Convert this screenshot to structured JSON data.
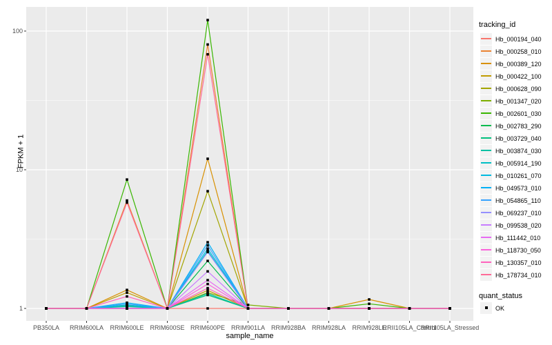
{
  "chart_data": {
    "type": "line",
    "title": "",
    "xlabel": "sample_name",
    "ylabel": "FPKM + 1",
    "y_scale": "log10",
    "y_ticks": [
      1,
      10,
      100
    ],
    "y_minor_ticks": [
      3.162,
      31.62
    ],
    "ylim_px_note": "log axis, decades at 1/10/100",
    "grid": true,
    "legend_position": "right",
    "panel_bg": "#ebebeb",
    "grid_color": "#ffffff",
    "tick_color": "#333333",
    "categories": [
      "PB350LA",
      "RRIM600LA",
      "RRIM600LE",
      "RRIM600SE",
      "RRIM600PE",
      "RRIM901LA",
      "RRIM928BA",
      "RRIM928LA",
      "RRIM928LE",
      "RRII105LA_Control",
      "RRII105LA_Stressed"
    ],
    "series": [
      {
        "name": "Hb_000194_040",
        "color": "#F8766D",
        "values": [
          1,
          1,
          1,
          1,
          1,
          1,
          1,
          1,
          1,
          1,
          1
        ]
      },
      {
        "name": "Hb_000258_010",
        "color": "#EA8331",
        "values": [
          1,
          1,
          6,
          1,
          80,
          1,
          1,
          1,
          1,
          1,
          1
        ]
      },
      {
        "name": "Hb_000389_120",
        "color": "#D89000",
        "values": [
          1,
          1,
          1.36,
          1,
          12,
          1,
          1,
          1,
          1.16,
          1,
          1
        ]
      },
      {
        "name": "Hb_000422_100",
        "color": "#C09B00",
        "values": [
          1,
          1,
          1.3,
          1,
          1.35,
          1,
          1,
          1,
          1,
          1,
          1
        ]
      },
      {
        "name": "Hb_000628_090",
        "color": "#A3A500",
        "values": [
          1,
          1,
          1.05,
          1,
          7,
          1,
          1,
          1,
          1,
          1,
          1
        ]
      },
      {
        "name": "Hb_001347_020",
        "color": "#7CAE00",
        "values": [
          1,
          1,
          1,
          1,
          1.3,
          1.06,
          1,
          1,
          1,
          1,
          1
        ]
      },
      {
        "name": "Hb_002601_030",
        "color": "#39B600",
        "values": [
          1,
          1,
          8.5,
          1,
          120,
          1,
          1,
          1,
          1.08,
          1,
          1
        ]
      },
      {
        "name": "Hb_002783_290",
        "color": "#00BB4E",
        "values": [
          1,
          1,
          1,
          1,
          2.2,
          1,
          1,
          1,
          1,
          1,
          1
        ]
      },
      {
        "name": "Hb_003729_040",
        "color": "#00BF7D",
        "values": [
          1,
          1,
          1,
          1,
          1.25,
          1,
          1,
          1,
          1,
          1,
          1
        ]
      },
      {
        "name": "Hb_003874_030",
        "color": "#00C1A3",
        "values": [
          1,
          1,
          1.03,
          1,
          1.28,
          1,
          1,
          1,
          1,
          1,
          1
        ]
      },
      {
        "name": "Hb_005914_190",
        "color": "#00BFC4",
        "values": [
          1,
          1,
          1.04,
          1,
          2.6,
          1,
          1,
          1,
          1,
          1,
          1
        ]
      },
      {
        "name": "Hb_010261_070",
        "color": "#00BAE0",
        "values": [
          1,
          1,
          1.06,
          1,
          2.7,
          1,
          1,
          1,
          1,
          1,
          1
        ]
      },
      {
        "name": "Hb_049573_010",
        "color": "#00B0F6",
        "values": [
          1,
          1,
          1.1,
          1,
          3.0,
          1,
          1,
          1,
          1,
          1,
          1
        ]
      },
      {
        "name": "Hb_054865_110",
        "color": "#35A2FF",
        "values": [
          1,
          1,
          1.08,
          1,
          2.85,
          1,
          1,
          1,
          1,
          1,
          1
        ]
      },
      {
        "name": "Hb_069237_010",
        "color": "#9590FF",
        "values": [
          1,
          1,
          1,
          1,
          2.55,
          1,
          1,
          1,
          1,
          1,
          1
        ]
      },
      {
        "name": "Hb_099538_020",
        "color": "#C77CFF",
        "values": [
          1,
          1,
          1,
          1,
          1.85,
          1,
          1,
          1,
          1,
          1,
          1
        ]
      },
      {
        "name": "Hb_111442_010",
        "color": "#E76BF3",
        "values": [
          1,
          1,
          1,
          1,
          1.6,
          1,
          1,
          1,
          1,
          1,
          1
        ]
      },
      {
        "name": "Hb_118730_050",
        "color": "#FA62DB",
        "values": [
          1,
          1,
          1,
          1,
          1.5,
          1,
          1,
          1,
          1,
          1,
          1
        ]
      },
      {
        "name": "Hb_130357_010",
        "color": "#FF62BC",
        "values": [
          1,
          1,
          1.22,
          1,
          1.4,
          1,
          1,
          1,
          1,
          1,
          1
        ]
      },
      {
        "name": "Hb_178734_010",
        "color": "#FF6A98",
        "values": [
          1,
          1,
          5.8,
          1,
          68,
          1,
          1,
          1,
          1,
          1,
          1
        ]
      }
    ],
    "point_marker": {
      "shape": "square",
      "color": "#000000"
    }
  },
  "legend": {
    "tracking_title": "tracking_id",
    "quant_title": "quant_status",
    "quant_entries": [
      {
        "label": "OK"
      }
    ]
  }
}
